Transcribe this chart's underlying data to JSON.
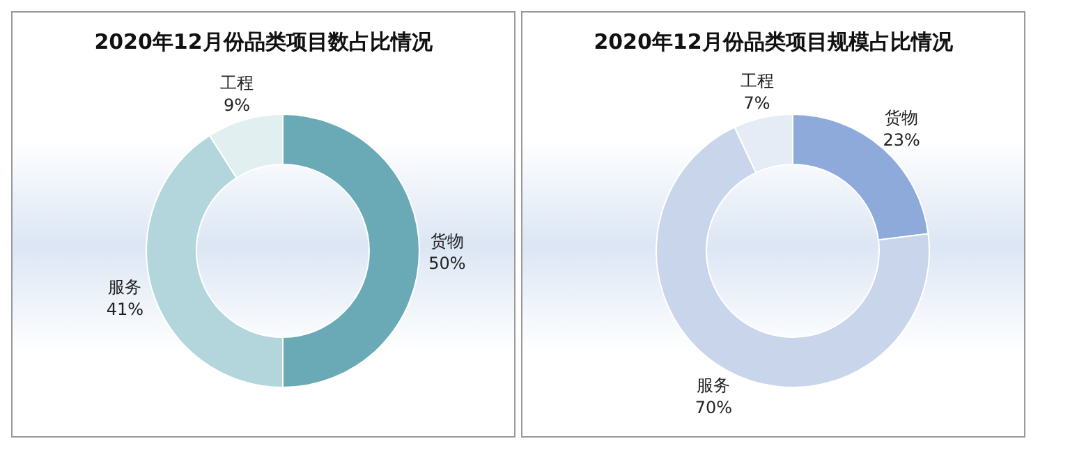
{
  "chart_data": [
    {
      "type": "donut",
      "title": "2020年12月份品类项目数占比情况",
      "categories": [
        "货物",
        "服务",
        "工程"
      ],
      "values": [
        50,
        41,
        9
      ],
      "value_labels": [
        "50%",
        "41%",
        "9%"
      ],
      "colors": [
        "#6aaab6",
        "#b3d5dc",
        "#e2eff1"
      ],
      "legend": false
    },
    {
      "type": "donut",
      "title": "2020年12月份品类项目规模占比情况",
      "categories": [
        "货物",
        "服务",
        "工程"
      ],
      "values": [
        23,
        70,
        7
      ],
      "value_labels": [
        "23%",
        "70%",
        "7%"
      ],
      "colors": [
        "#8eaadb",
        "#c9d5ea",
        "#e6ecf6"
      ],
      "legend": false
    }
  ]
}
